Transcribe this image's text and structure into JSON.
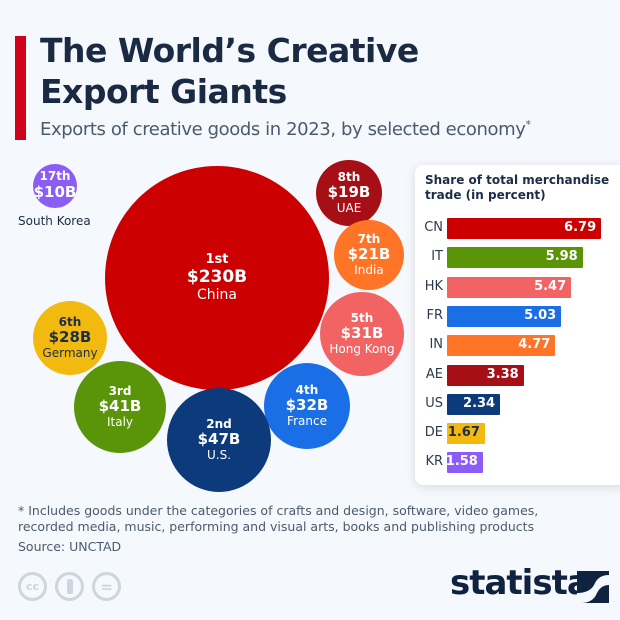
{
  "title": "The World’s Creative Export Giants",
  "subtitle": "Exports of creative goods in 2023, by selected economy",
  "subtitle_mark": "*",
  "chart_data": [
    {
      "type": "bubble",
      "unit": "B USD",
      "items": [
        {
          "rank": "17th",
          "label": "$10B",
          "value": 10,
          "name": "South Korea",
          "color": "#8b5cf6"
        },
        {
          "rank": "1st",
          "label": "$230B",
          "value": 230,
          "name": "China",
          "color": "#cc0000"
        },
        {
          "rank": "8th",
          "label": "$19B",
          "value": 19,
          "name": "UAE",
          "color": "#a50f15"
        },
        {
          "rank": "7th",
          "label": "$21B",
          "value": 21,
          "name": "India",
          "color": "#ff7427"
        },
        {
          "rank": "5th",
          "label": "$31B",
          "value": 31,
          "name": "Hong Kong",
          "color": "#f26464"
        },
        {
          "rank": "4th",
          "label": "$32B",
          "value": 32,
          "name": "France",
          "color": "#1a6fe6"
        },
        {
          "rank": "2nd",
          "label": "$47B",
          "value": 47,
          "name": "U.S.",
          "color": "#0d3a7a"
        },
        {
          "rank": "3rd",
          "label": "$41B",
          "value": 41,
          "name": "Italy",
          "color": "#5a9409"
        },
        {
          "rank": "6th",
          "label": "$28B",
          "value": 28,
          "name": "Germany",
          "color": "#f2b90f"
        }
      ]
    },
    {
      "type": "bar",
      "title": "Share of total merchandise trade (in percent)",
      "categories": [
        "CN",
        "IT",
        "HK",
        "FR",
        "IN",
        "AE",
        "US",
        "DE",
        "KR"
      ],
      "values": [
        6.79,
        5.98,
        5.47,
        5.03,
        4.77,
        3.38,
        2.34,
        1.67,
        1.58
      ],
      "labels": [
        "6.79",
        "5.98",
        "5.47",
        "5.03",
        "4.77",
        "3.38",
        "2.34",
        "1.67",
        "1.58"
      ],
      "colors": [
        "#cc0000",
        "#5a9409",
        "#f26464",
        "#1a6fe6",
        "#ff7427",
        "#a50f15",
        "#0d3a7a",
        "#f2b90f",
        "#8b5cf6"
      ],
      "label_colors": [
        "#fff",
        "#fff",
        "#fff",
        "#fff",
        "#fff",
        "#fff",
        "#fff",
        "#1c2d45",
        "#fff"
      ]
    }
  ],
  "footnote": "* Includes goods under the categories of crafts and design, software, video games, recorded media, music, performing and visual arts, books and publishing products",
  "source": "Source: UNCTAD",
  "license_icons": [
    "cc-icon",
    "attribution-icon",
    "no-derivatives-icon"
  ],
  "license_labels": [
    "cc",
    "",
    ""
  ],
  "logo": "statista"
}
